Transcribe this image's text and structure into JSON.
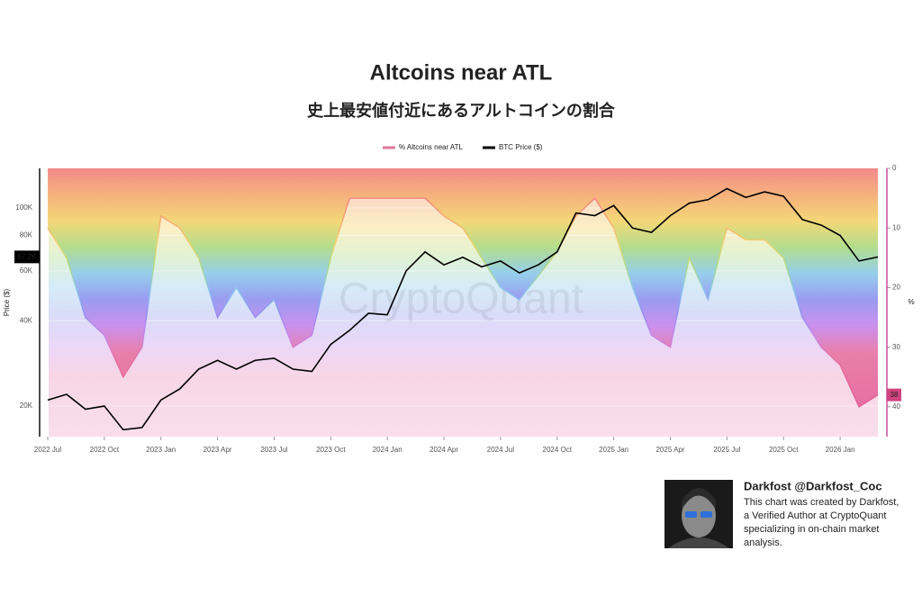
{
  "chart_data": {
    "type": "line",
    "title": "Altcoins near ATL",
    "subtitle": "史上最安値付近にあるアルトコインの割合",
    "x": [
      "2022-07",
      "2022-08",
      "2022-09",
      "2022-10",
      "2022-11",
      "2022-12",
      "2023-01",
      "2023-02",
      "2023-03",
      "2023-04",
      "2023-05",
      "2023-06",
      "2023-07",
      "2023-08",
      "2023-09",
      "2023-10",
      "2023-11",
      "2023-12",
      "2024-01",
      "2024-02",
      "2024-03",
      "2024-04",
      "2024-05",
      "2024-06",
      "2024-07",
      "2024-08",
      "2024-09",
      "2024-10",
      "2024-11",
      "2024-12",
      "2025-01",
      "2025-02",
      "2025-03",
      "2025-04",
      "2025-05",
      "2025-06",
      "2025-07",
      "2025-08",
      "2025-09",
      "2025-10",
      "2025-11",
      "2025-12",
      "2026-01",
      "2026-02",
      "2026-03"
    ],
    "xticks": [
      {
        "value": "2022-07",
        "label": "2022 Jul"
      },
      {
        "value": "2022-10",
        "label": "2022 Oct"
      },
      {
        "value": "2023-01",
        "label": "2023 Jan"
      },
      {
        "value": "2023-04",
        "label": "2023 Apr"
      },
      {
        "value": "2023-07",
        "label": "2023 Jul"
      },
      {
        "value": "2023-10",
        "label": "2023 Oct"
      },
      {
        "value": "2024-01",
        "label": "2024 Jan"
      },
      {
        "value": "2024-04",
        "label": "2024 Apr"
      },
      {
        "value": "2024-07",
        "label": "2024 Jul"
      },
      {
        "value": "2024-10",
        "label": "2024 Oct"
      },
      {
        "value": "2025-01",
        "label": "2025 Jan"
      },
      {
        "value": "2025-04",
        "label": "2025 Apr"
      },
      {
        "value": "2025-07",
        "label": "2025 Jul"
      },
      {
        "value": "2025-10",
        "label": "2025 Oct"
      },
      {
        "value": "2026-01",
        "label": "2026 Jan"
      }
    ],
    "series": [
      {
        "name": "% Altcoins near ATL",
        "color": "#e0749b",
        "axis": "y2",
        "style": "area",
        "values": [
          10,
          15,
          25,
          28,
          35,
          30,
          8,
          10,
          15,
          25,
          20,
          25,
          22,
          30,
          28,
          15,
          5,
          5,
          5,
          5,
          5,
          8,
          10,
          15,
          20,
          22,
          18,
          14,
          8,
          5,
          10,
          20,
          28,
          30,
          15,
          22,
          10,
          12,
          12,
          15,
          25,
          30,
          33,
          40,
          38
        ]
      },
      {
        "name": "BTC Price ($)",
        "color": "#000000",
        "values": [
          21000,
          22000,
          19500,
          20000,
          16500,
          16800,
          21000,
          23000,
          27000,
          29000,
          27000,
          29000,
          29500,
          27000,
          26500,
          33000,
          37000,
          42500,
          42000,
          60000,
          70000,
          63000,
          67000,
          62000,
          65000,
          59000,
          63000,
          70000,
          96000,
          94000,
          102000,
          85000,
          82000,
          94000,
          104000,
          107000,
          117000,
          109000,
          114000,
          110000,
          91000,
          87000,
          80000,
          65000,
          67200
        ],
        "value_labels": [
          null,
          null,
          null,
          null,
          null,
          null,
          null,
          null,
          null,
          null,
          null,
          null,
          null,
          null,
          null,
          null,
          null,
          null,
          null,
          null,
          null,
          null,
          null,
          null,
          null,
          null,
          null,
          null,
          null,
          null,
          null,
          null,
          null,
          null,
          null,
          null,
          null,
          null,
          null,
          null,
          null,
          null,
          null,
          null,
          "67.2K"
        ]
      }
    ],
    "ylabel": "Price ($)",
    "log_scale": true,
    "ylim": [
      15600,
      138000
    ],
    "yticks": [
      {
        "value": 20000,
        "label": "20K"
      },
      {
        "value": 40000,
        "label": "40K"
      },
      {
        "value": 60000,
        "label": "60K"
      },
      {
        "value": 80000,
        "label": "80K"
      },
      {
        "value": 100000,
        "label": "100K"
      }
    ],
    "y2label": "%",
    "y2_inverted": true,
    "y2lim": [
      0,
      45
    ],
    "y2ticks": [
      0,
      10,
      20,
      30,
      40
    ],
    "grid": true,
    "watermark": "CryptoQuant"
  },
  "author_card": {
    "name": "Darkfost @Darkfost_Coc",
    "lines": [
      "This chart was created by Darkfost,",
      "a Verified Author at CryptoQuant",
      "specializing in on-chain market",
      "analysis."
    ]
  }
}
